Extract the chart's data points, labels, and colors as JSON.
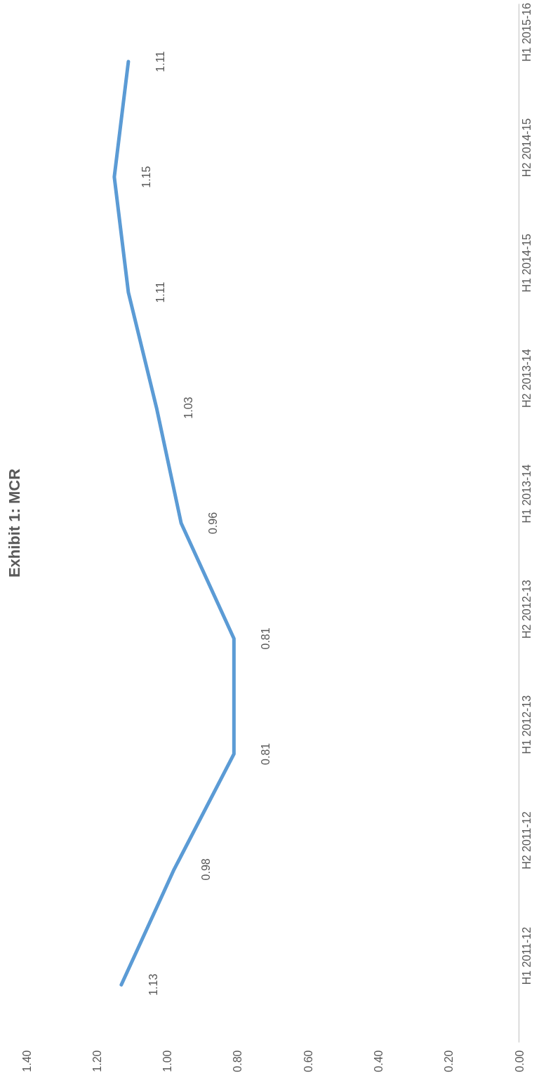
{
  "chart_data": {
    "type": "line",
    "title": "Exhibit 1: MCR",
    "orientation": "horizontal",
    "categories": [
      "H1 2015-16",
      "H2 2014-15",
      "H1 2014-15",
      "H2 2013-14",
      "H1 2013-14",
      "H2 2012-13",
      "H1 2012-13",
      "H2 2011-12",
      "H1 2011-12"
    ],
    "series": [
      {
        "color": "#5b9bd5",
        "values": [
          1.11,
          1.15,
          1.11,
          1.03,
          0.96,
          0.81,
          0.81,
          0.98,
          1.13
        ]
      }
    ],
    "xlim": [
      1.4,
      0
    ],
    "xticks": [
      {
        "value": 1.4,
        "label": "1.40"
      },
      {
        "value": 1.2,
        "label": "1.20"
      },
      {
        "value": 1.0,
        "label": "1.00"
      },
      {
        "value": 0.8,
        "label": "0.80"
      },
      {
        "value": 0.6,
        "label": "0.60"
      },
      {
        "value": 0.4,
        "label": "0.40"
      },
      {
        "value": 0.2,
        "label": "0.20"
      },
      {
        "value": 0.0,
        "label": "0.00"
      }
    ],
    "data_labels": true,
    "grid": false
  }
}
